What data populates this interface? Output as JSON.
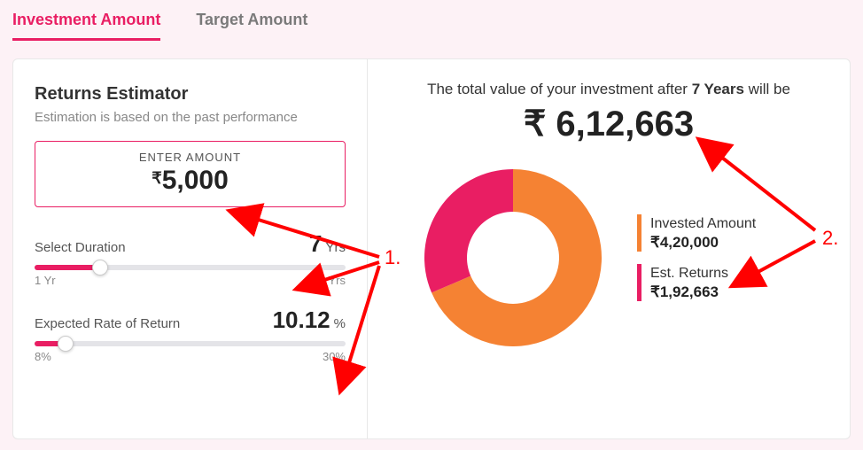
{
  "tabs": {
    "investment": "Investment Amount",
    "target": "Target Amount",
    "active": "investment"
  },
  "estimator": {
    "title": "Returns Estimator",
    "subtitle": "Estimation is based on the past performance",
    "enter_label": "ENTER AMOUNT",
    "amount_currency": "₹",
    "amount_value": "5,000",
    "duration": {
      "label": "Select Duration",
      "value": "7",
      "unit": "Yrs",
      "min_label": "1 Yr",
      "max_label": "30 Yrs",
      "fill_percent": 21,
      "thumb_percent": 21
    },
    "rate": {
      "label": "Expected Rate of Return",
      "value": "10.12",
      "unit": "%",
      "min_label": "8%",
      "max_label": "30%",
      "fill_percent": 10,
      "thumb_percent": 10
    }
  },
  "result": {
    "headline_pre": "The total value of your investment after ",
    "headline_years": "7 Years",
    "headline_post": " will be",
    "total": "₹ 6,12,663",
    "donut": {
      "invested_value": 420000,
      "returns_value": 192663,
      "invested_color": "#f58233",
      "returns_color": "#e91e63",
      "background": "#ffffff"
    },
    "legend": {
      "invested_label": "Invested Amount",
      "invested_value": "₹4,20,000",
      "invested_color": "#f58233",
      "returns_label": "Est. Returns",
      "returns_value": "₹1,92,663",
      "returns_color": "#e91e63"
    }
  },
  "annotations": {
    "one": "1.",
    "two": "2.",
    "arrow_color": "#ff0000"
  }
}
